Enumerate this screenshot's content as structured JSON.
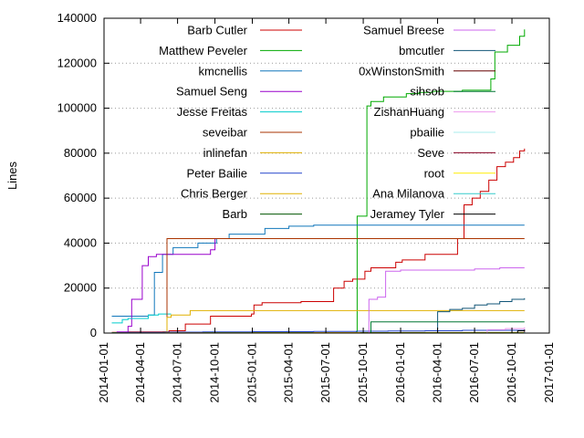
{
  "chart_data": {
    "type": "line",
    "ylabel": "Lines",
    "ylim": [
      0,
      140000
    ],
    "y_ticks": [
      0,
      20000,
      40000,
      60000,
      80000,
      100000,
      120000,
      140000
    ],
    "xlim": [
      "2014-01-01",
      "2017-01-01"
    ],
    "x_ticks": [
      "2014-01-01",
      "2014-04-01",
      "2014-07-01",
      "2014-10-01",
      "2015-01-01",
      "2015-04-01",
      "2015-07-01",
      "2015-10-01",
      "2016-01-01",
      "2016-04-01",
      "2016-07-01",
      "2016-10-01",
      "2017-01-01"
    ],
    "grid": "horizontal-dotted",
    "legend_placement": "top (two columns)",
    "series": [
      {
        "name": "Barb Cutler",
        "color": "#cc0000",
        "x": [
          "2014-01-20",
          "2014-03-01",
          "2014-06-10",
          "2014-07-20",
          "2014-09-20",
          "2014-12-30",
          "2015-01-05",
          "2015-01-25",
          "2015-05-01",
          "2015-07-20",
          "2015-08-15",
          "2015-09-05",
          "2015-10-05",
          "2015-10-20",
          "2015-12-20",
          "2016-01-05",
          "2016-03-01",
          "2016-05-20",
          "2016-06-05",
          "2016-06-25",
          "2016-07-15",
          "2016-08-05",
          "2016-08-25",
          "2016-09-15",
          "2016-10-05",
          "2016-10-20",
          "2016-11-01"
        ],
        "values": [
          300,
          500,
          1000,
          4000,
          7500,
          8500,
          12500,
          13500,
          14000,
          20000,
          23000,
          24000,
          27500,
          29000,
          31500,
          32500,
          35000,
          42000,
          57000,
          60000,
          63000,
          68000,
          74000,
          76000,
          78000,
          81000,
          82000
        ]
      },
      {
        "name": "Matthew Peveler",
        "color": "#00aa00",
        "x": [
          "2014-01-20",
          "2015-09-14",
          "2015-09-16",
          "2015-10-10",
          "2015-10-20",
          "2015-11-20",
          "2016-01-15",
          "2016-02-15",
          "2016-03-20",
          "2016-06-01",
          "2016-07-15",
          "2016-08-10",
          "2016-08-20",
          "2016-09-20",
          "2016-10-20",
          "2016-11-01"
        ],
        "values": [
          200,
          500,
          52000,
          101000,
          103000,
          105000,
          106500,
          107000,
          107500,
          108000,
          108000,
          113000,
          125000,
          128000,
          132000,
          135000
        ]
      },
      {
        "name": "kmcnellis",
        "color": "#1177bb",
        "x": [
          "2014-01-20",
          "2014-04-20",
          "2014-05-05",
          "2014-05-25",
          "2014-06-20",
          "2014-08-20",
          "2014-10-05",
          "2014-11-05",
          "2015-02-01",
          "2015-04-01",
          "2015-06-01",
          "2016-11-01"
        ],
        "values": [
          7500,
          8000,
          27000,
          35000,
          38000,
          40000,
          42000,
          44000,
          46500,
          47500,
          48000,
          48000
        ]
      },
      {
        "name": "Samuel Seng",
        "color": "#9900cc",
        "x": [
          "2014-02-01",
          "2014-03-01",
          "2014-03-10",
          "2014-04-05",
          "2014-04-20",
          "2014-05-10",
          "2014-09-20",
          "2014-10-01"
        ],
        "values": [
          500,
          3000,
          15000,
          30000,
          34000,
          35000,
          37000,
          42000
        ]
      },
      {
        "name": "Jesse Freitas",
        "color": "#00cccc",
        "x": [
          "2014-01-20",
          "2014-02-15",
          "2014-03-01",
          "2014-04-20",
          "2014-05-15",
          "2014-06-15"
        ],
        "values": [
          4500,
          6000,
          6500,
          8000,
          8500,
          8500
        ]
      },
      {
        "name": "seveibar",
        "color": "#aa3300",
        "x": [
          "2014-05-25",
          "2014-06-05",
          "2016-11-01"
        ],
        "values": [
          500,
          42000,
          42000
        ]
      },
      {
        "name": "inlinefan",
        "color": "#e0b000",
        "x": [
          "2014-05-20",
          "2014-06-05",
          "2014-06-15",
          "2014-08-01",
          "2016-11-01"
        ],
        "values": [
          0,
          7000,
          8000,
          10000,
          10000
        ]
      },
      {
        "name": "Peter Bailie",
        "color": "#2244cc",
        "x": [
          "2014-01-20",
          "2014-03-01",
          "2014-06-01",
          "2014-09-01",
          "2015-01-01",
          "2015-06-01",
          "2015-09-15",
          "2015-12-01",
          "2016-03-01",
          "2016-06-01",
          "2016-11-01"
        ],
        "values": [
          100,
          300,
          400,
          500,
          600,
          700,
          800,
          900,
          1000,
          1200,
          1500
        ]
      },
      {
        "name": "Chris Berger",
        "color": "#e0b000",
        "x": [
          "2014-01-20",
          "2014-06-01",
          "2015-01-01",
          "2015-06-01",
          "2016-01-01",
          "2016-11-01"
        ],
        "values": [
          50,
          100,
          150,
          200,
          250,
          300
        ]
      },
      {
        "name": "Barb",
        "color": "#005500",
        "x": [
          "2014-01-20",
          "2015-09-20",
          "2015-09-25",
          "2016-11-01"
        ],
        "values": [
          0,
          0,
          100,
          100
        ]
      },
      {
        "name": "Samuel Breese",
        "color": "#cc66ee",
        "x": [
          "2015-09-25",
          "2015-10-15",
          "2015-11-05",
          "2015-11-25",
          "2016-01-01",
          "2016-04-01",
          "2016-07-01",
          "2016-09-01",
          "2016-11-01"
        ],
        "values": [
          0,
          15000,
          16000,
          27500,
          28000,
          28000,
          28500,
          29000,
          29000
        ]
      },
      {
        "name": "bmcutler",
        "color": "#115577",
        "x": [
          "2016-03-15",
          "2016-04-01",
          "2016-05-01",
          "2016-06-01",
          "2016-07-01",
          "2016-08-01",
          "2016-09-01",
          "2016-10-01",
          "2016-11-01"
        ],
        "values": [
          0,
          9500,
          10500,
          11000,
          12500,
          13000,
          14000,
          15000,
          15500
        ]
      },
      {
        "name": "0xWinstonSmith",
        "color": "#660000",
        "x": [
          "2015-10-01",
          "2016-11-01"
        ],
        "values": [
          0,
          0
        ]
      },
      {
        "name": "sihsob",
        "color": "#007733",
        "x": [
          "2015-09-20",
          "2015-10-20",
          "2016-11-01"
        ],
        "values": [
          0,
          5000,
          5000
        ]
      },
      {
        "name": "ZishanHuang",
        "color": "#ee99ee",
        "x": [
          "2016-06-01",
          "2016-08-01",
          "2016-09-15",
          "2016-11-01"
        ],
        "values": [
          0,
          1500,
          2000,
          2500
        ]
      },
      {
        "name": "pbailie",
        "color": "#aaeeee",
        "x": [
          "2016-01-01",
          "2016-11-01"
        ],
        "values": [
          0,
          0
        ]
      },
      {
        "name": "Seve",
        "color": "#880022",
        "x": [
          "2016-09-01",
          "2016-11-01"
        ],
        "values": [
          0,
          1000
        ]
      },
      {
        "name": "root",
        "color": "#ffee00",
        "x": [
          "2014-01-20",
          "2016-11-01"
        ],
        "values": [
          0,
          0
        ]
      },
      {
        "name": "Ana Milanova",
        "color": "#33cccc",
        "x": [
          "2016-05-01",
          "2016-11-01"
        ],
        "values": [
          0,
          500
        ]
      },
      {
        "name": "Jeramey Tyler",
        "color": "#000000",
        "x": [
          "2016-09-15",
          "2016-10-15",
          "2016-11-01"
        ],
        "values": [
          0,
          1000,
          1500
        ]
      }
    ]
  }
}
